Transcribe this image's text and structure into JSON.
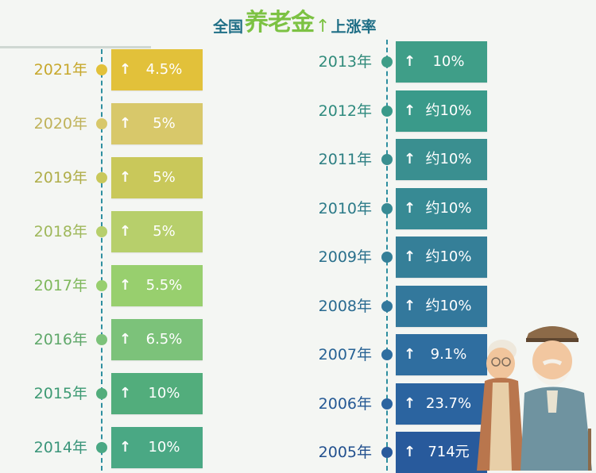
{
  "title": {
    "part1": "全国",
    "part2": "养老金",
    "part3": "上涨率"
  },
  "colors": {
    "timeline": "#2e8fa0",
    "title_teal": "#1f6f86",
    "title_green": "#7cc243"
  },
  "chart_data": {
    "type": "bar",
    "title": "全国养老金上涨率",
    "xlabel": "",
    "ylabel": "",
    "entries": [
      {
        "year": "2021年",
        "label": "4.5%",
        "value": 4.5,
        "color": "#e2c13a",
        "year_color": "#c7a82c"
      },
      {
        "year": "2020年",
        "label": "5%",
        "value": 5,
        "color": "#d8c86a",
        "year_color": "#bfb25a"
      },
      {
        "year": "2019年",
        "label": "5%",
        "value": 5,
        "color": "#c9c85a",
        "year_color": "#b0ae4a"
      },
      {
        "year": "2018年",
        "label": "5%",
        "value": 5,
        "color": "#b7cf6b",
        "year_color": "#9fb85b"
      },
      {
        "year": "2017年",
        "label": "5.5%",
        "value": 5.5,
        "color": "#98cf6e",
        "year_color": "#7fb85c"
      },
      {
        "year": "2016年",
        "label": "6.5%",
        "value": 6.5,
        "color": "#7cc27a",
        "year_color": "#5fa86a"
      },
      {
        "year": "2015年",
        "label": "10%",
        "value": 10,
        "color": "#52ad7c",
        "year_color": "#3d9a73"
      },
      {
        "year": "2014年",
        "label": "10%",
        "value": 10,
        "color": "#4aa884",
        "year_color": "#3a957a"
      },
      {
        "year": "2013年",
        "label": "10%",
        "value": 10,
        "color": "#3f9e88",
        "year_color": "#2f8a7a"
      },
      {
        "year": "2012年",
        "label": "约10%",
        "value": 10,
        "color": "#3a9a8a",
        "year_color": "#2e8a7e"
      },
      {
        "year": "2011年",
        "label": "约10%",
        "value": 10,
        "color": "#3a8f90",
        "year_color": "#2d7f83"
      },
      {
        "year": "2010年",
        "label": "约10%",
        "value": 10,
        "color": "#378a94",
        "year_color": "#2b7a88"
      },
      {
        "year": "2009年",
        "label": "约10%",
        "value": 10,
        "color": "#357f98",
        "year_color": "#2a708c"
      },
      {
        "year": "2008年",
        "label": "约10%",
        "value": 10,
        "color": "#33789c",
        "year_color": "#296a90"
      },
      {
        "year": "2007年",
        "label": "9.1%",
        "value": 9.1,
        "color": "#2f6ea0",
        "year_color": "#276294"
      },
      {
        "year": "2006年",
        "label": "23.7%",
        "value": 23.7,
        "color": "#2b64a0",
        "year_color": "#245894"
      },
      {
        "year": "2005年",
        "label": "714元",
        "value": 714,
        "color": "#285a9c",
        "year_color": "#22508e"
      }
    ]
  }
}
